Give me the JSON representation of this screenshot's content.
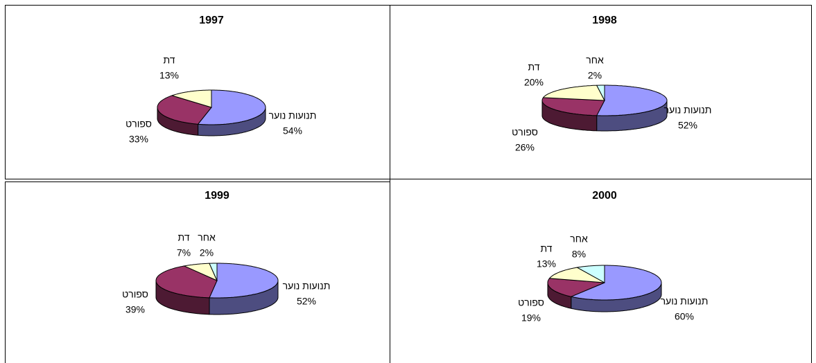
{
  "chart_data": [
    {
      "type": "pie",
      "title": "1997",
      "categories": [
        "תנועות נוער",
        "ספורט",
        "דת"
      ],
      "values": [
        54,
        33,
        13
      ],
      "value_labels": [
        "54%",
        "33%",
        "13%"
      ],
      "colors": [
        "#9999ff",
        "#993366",
        "#ffffcc"
      ]
    },
    {
      "type": "pie",
      "title": "1998",
      "categories": [
        "תנועות נוער",
        "ספורט",
        "דת",
        "אחר"
      ],
      "values": [
        52,
        26,
        20,
        2
      ],
      "value_labels": [
        "52%",
        "26%",
        "20%",
        "2%"
      ],
      "colors": [
        "#9999ff",
        "#993366",
        "#ffffcc",
        "#ccffff"
      ]
    },
    {
      "type": "pie",
      "title": "1999",
      "categories": [
        "תנועות נוער",
        "ספורט",
        "דת",
        "אחר"
      ],
      "values": [
        52,
        39,
        7,
        2
      ],
      "value_labels": [
        "52%",
        "39%",
        "7%",
        "2%"
      ],
      "colors": [
        "#9999ff",
        "#993366",
        "#ffffcc",
        "#ccffff"
      ]
    },
    {
      "type": "pie",
      "title": "2000",
      "categories": [
        "תנועות נוער",
        "ספורט",
        "דת",
        "אחר"
      ],
      "values": [
        60,
        19,
        13,
        8
      ],
      "value_labels": [
        "60%",
        "19%",
        "13%",
        "8%"
      ],
      "colors": [
        "#9999ff",
        "#993366",
        "#ffffcc",
        "#ccffff"
      ]
    }
  ]
}
